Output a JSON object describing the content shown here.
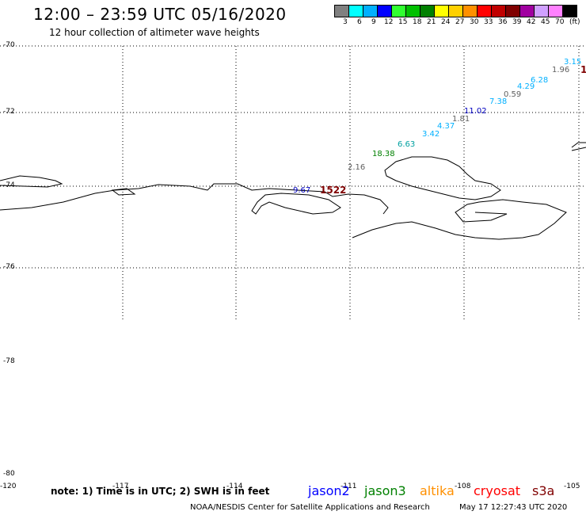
{
  "title": "12:00 – 23:59 UTC 05/16/2020",
  "subtitle": "12 hour collection of altimeter wave heights",
  "scale": {
    "colors": [
      "#808080",
      "#00ffff",
      "#00b0ff",
      "#0000ff",
      "#30ff30",
      "#00c000",
      "#008000",
      "#ffff00",
      "#ffd000",
      "#ff9000",
      "#ff0000",
      "#c00000",
      "#800000",
      "#a000a0",
      "#d0a0ff",
      "#ff80ff",
      "#000000"
    ],
    "labels": [
      "3",
      "6",
      "9",
      "12",
      "15",
      "18",
      "21",
      "24",
      "27",
      "30",
      "33",
      "36",
      "39",
      "42",
      "45",
      "70",
      "(ft)"
    ]
  },
  "lat_labels": [
    "-70",
    "-72",
    "-74",
    "-76",
    "-78",
    "-80"
  ],
  "lon_labels": [
    "-120",
    "-117",
    "-114",
    "-111",
    "-108",
    "-105"
  ],
  "swh": [
    {
      "text": "3.15",
      "color": "#00b0ff"
    },
    {
      "text": "1.96",
      "color": "#606060"
    },
    {
      "text": "1",
      "color": "#800000"
    },
    {
      "text": "6.28",
      "color": "#00b0ff"
    },
    {
      "text": "4.29",
      "color": "#00b0ff"
    },
    {
      "text": "0.59",
      "color": "#606060"
    },
    {
      "text": "7.38",
      "color": "#00b0ff"
    },
    {
      "text": "11.02",
      "color": "#0000c0"
    },
    {
      "text": "1.81",
      "color": "#606060"
    },
    {
      "text": "4.37",
      "color": "#00b0ff"
    },
    {
      "text": "3.42",
      "color": "#00b0ff"
    },
    {
      "text": "6.63",
      "color": "#00a0a0"
    },
    {
      "text": "18.38",
      "color": "#008000"
    },
    {
      "text": "2.16",
      "color": "#606060"
    },
    {
      "text": "9.67",
      "color": "#0000c0"
    },
    {
      "text": "1522",
      "color": "#800000"
    }
  ],
  "note": "note: 1) Time is in UTC; 2) SWH is in feet",
  "satellites": [
    {
      "name": "jason2",
      "color": "#0000ff"
    },
    {
      "name": "jason3",
      "color": "#008000"
    },
    {
      "name": "altika",
      "color": "#ff9000"
    },
    {
      "name": "cryosat",
      "color": "#ff0000"
    },
    {
      "name": "s3a",
      "color": "#800000"
    }
  ],
  "footer_left": "NOAA/NESDIS Center for Satellite Applications and Research",
  "footer_right": "May 17 12:27:43 UTC 2020"
}
